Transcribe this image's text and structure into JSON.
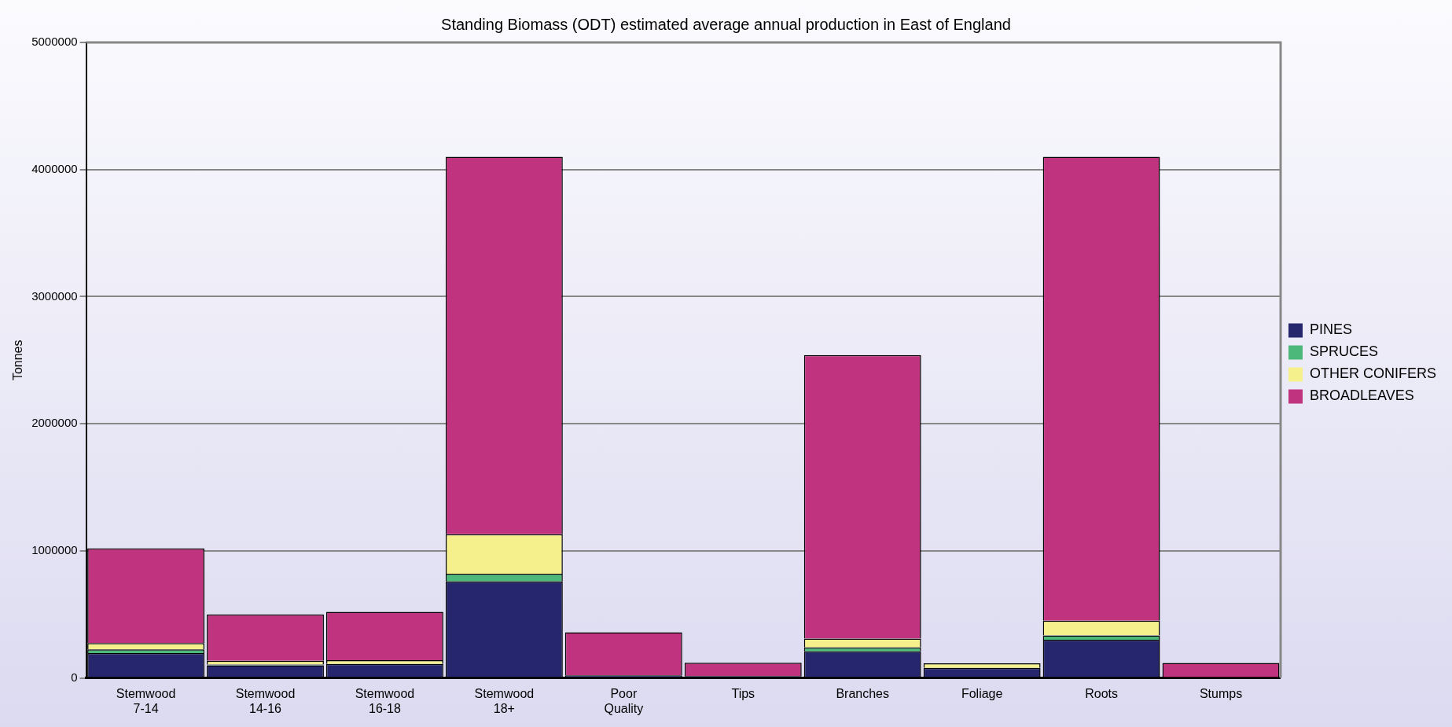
{
  "chart_data": {
    "type": "bar",
    "title": "Standing Biomass (ODT) estimated average annual production in East of England",
    "ylabel": "Tonnes",
    "categories": [
      "Stemwood 7-14",
      "Stemwood 14-16",
      "Stemwood 16-18",
      "Stemwood 18+",
      "Poor Quality",
      "Tips",
      "Branches",
      "Foliage",
      "Roots",
      "Stumps"
    ],
    "series": [
      {
        "name": "PINES",
        "color": "#26266e",
        "values": [
          195000,
          100000,
          110000,
          760000,
          20000,
          15000,
          210000,
          80000,
          300000,
          null
        ]
      },
      {
        "name": "SPRUCES",
        "color": "#4cb87a",
        "values": [
          30000,
          5000,
          null,
          60000,
          0,
          0,
          30000,
          null,
          35000,
          0
        ]
      },
      {
        "name": "OTHER CONIFERS",
        "color": "#f5f08c",
        "values": [
          50000,
          30000,
          30000,
          310000,
          0,
          0,
          70000,
          35000,
          115000,
          0
        ]
      },
      {
        "name": "BROADLEAVES",
        "color": "#c0337e",
        "values": [
          745000,
          365000,
          380000,
          2970000,
          340000,
          105000,
          2230000,
          0,
          3650000,
          118000
        ]
      }
    ],
    "stacked": true,
    "ylim": [
      0,
      5000000
    ],
    "yticks": [
      0,
      1000000,
      2000000,
      3000000,
      4000000,
      5000000
    ],
    "grid": "y",
    "legend": "right"
  }
}
